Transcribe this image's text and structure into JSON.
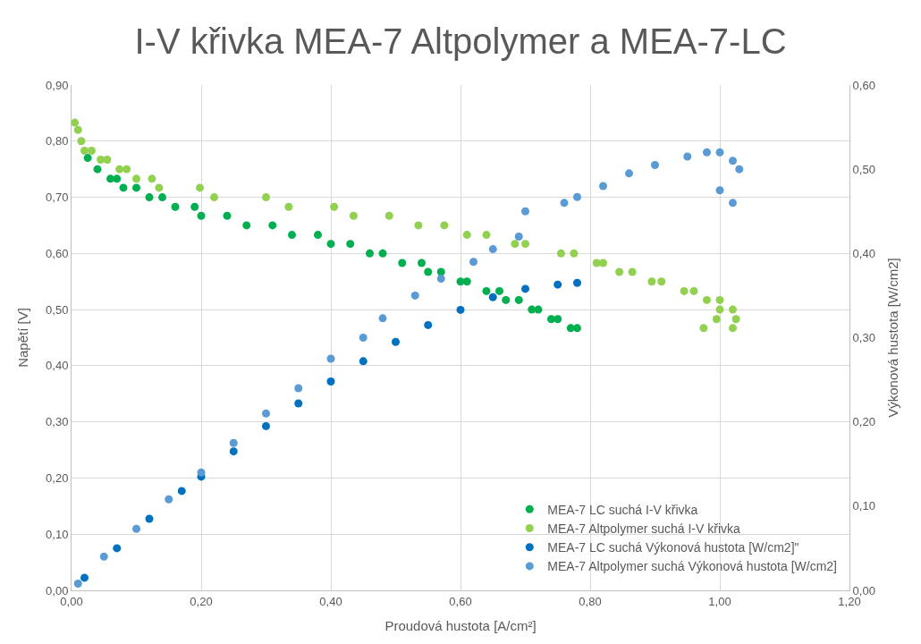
{
  "chart_data": {
    "type": "scatter",
    "title": "I-V křivka MEA-7 Altpolymer a MEA-7-LC",
    "xlabel": "Proudová hustota [A/cm²]",
    "ylabel": "Napětí [V]",
    "y2label": "Výkonová hustota [W/cm2]",
    "xlim": [
      0,
      1.2
    ],
    "xticks": [
      {
        "value": 0,
        "label": "0,00"
      },
      {
        "value": 0.2,
        "label": "0,20"
      },
      {
        "value": 0.4,
        "label": "0,40"
      },
      {
        "value": 0.6,
        "label": "0,60"
      },
      {
        "value": 0.8,
        "label": "0,80"
      },
      {
        "value": 1.0,
        "label": "1,00"
      },
      {
        "value": 1.2,
        "label": "1,20"
      }
    ],
    "ylim": [
      0,
      0.9
    ],
    "yticks": [
      {
        "value": 0,
        "label": "0,00"
      },
      {
        "value": 0.1,
        "label": "0,10"
      },
      {
        "value": 0.2,
        "label": "0,20"
      },
      {
        "value": 0.3,
        "label": "0,30"
      },
      {
        "value": 0.4,
        "label": "0,40"
      },
      {
        "value": 0.5,
        "label": "0,50"
      },
      {
        "value": 0.6,
        "label": "0,60"
      },
      {
        "value": 0.7,
        "label": "0,70"
      },
      {
        "value": 0.8,
        "label": "0,80"
      },
      {
        "value": 0.9,
        "label": "0,90"
      }
    ],
    "y2lim": [
      0,
      0.6
    ],
    "y2ticks": [
      {
        "value": 0,
        "label": "0,00"
      },
      {
        "value": 0.1,
        "label": "0,10"
      },
      {
        "value": 0.2,
        "label": "0,20"
      },
      {
        "value": 0.3,
        "label": "0,30"
      },
      {
        "value": 0.4,
        "label": "0,40"
      },
      {
        "value": 0.5,
        "label": "0,50"
      },
      {
        "value": 0.6,
        "label": "0,60"
      }
    ],
    "grid": true,
    "legend": "bottom right",
    "marker": "circle",
    "series": [
      {
        "name": "MEA-7 LC suchá I-V křivka",
        "color": "#00b050",
        "x": [
          0.025,
          0.04,
          0.06,
          0.07,
          0.08,
          0.1,
          0.12,
          0.14,
          0.16,
          0.19,
          0.2,
          0.24,
          0.27,
          0.31,
          0.34,
          0.38,
          0.4,
          0.43,
          0.46,
          0.48,
          0.51,
          0.54,
          0.55,
          0.57,
          0.6,
          0.61,
          0.64,
          0.66,
          0.67,
          0.69,
          0.71,
          0.72,
          0.74,
          0.75,
          0.77,
          0.78
        ],
        "values": [
          0.77,
          0.75,
          0.733,
          0.733,
          0.717,
          0.717,
          0.7,
          0.7,
          0.683,
          0.683,
          0.667,
          0.667,
          0.65,
          0.65,
          0.633,
          0.633,
          0.617,
          0.617,
          0.6,
          0.6,
          0.583,
          0.583,
          0.567,
          0.567,
          0.55,
          0.55,
          0.533,
          0.533,
          0.517,
          0.517,
          0.5,
          0.5,
          0.483,
          0.483,
          0.467,
          0.467
        ]
      },
      {
        "name": "MEA-7 Altpolymer suchá I-V křivka",
        "color": "#92d050",
        "x": [
          0.005,
          0.01,
          0.015,
          0.02,
          0.031,
          0.045,
          0.055,
          0.074,
          0.085,
          0.1,
          0.124,
          0.135,
          0.198,
          0.22,
          0.3,
          0.335,
          0.405,
          0.435,
          0.49,
          0.535,
          0.575,
          0.61,
          0.64,
          0.684,
          0.7,
          0.755,
          0.775,
          0.81,
          0.82,
          0.845,
          0.865,
          0.895,
          0.91,
          0.945,
          0.96,
          0.98,
          1.0,
          1.0,
          1.02,
          0.995,
          1.025,
          0.975,
          1.02
        ],
        "values": [
          0.833,
          0.82,
          0.8,
          0.783,
          0.783,
          0.767,
          0.767,
          0.75,
          0.75,
          0.733,
          0.733,
          0.717,
          0.717,
          0.7,
          0.7,
          0.683,
          0.683,
          0.667,
          0.667,
          0.65,
          0.65,
          0.633,
          0.633,
          0.617,
          0.617,
          0.6,
          0.6,
          0.583,
          0.583,
          0.567,
          0.567,
          0.55,
          0.55,
          0.533,
          0.533,
          0.517,
          0.517,
          0.5,
          0.5,
          0.483,
          0.483,
          0.467,
          0.467
        ]
      },
      {
        "name": "MEA-7 LC suchá Výkonová hustota [W/cm2]\"",
        "color": "#0070c0",
        "axis": "y2",
        "x": [
          0.02,
          0.07,
          0.12,
          0.17,
          0.2,
          0.25,
          0.3,
          0.35,
          0.4,
          0.45,
          0.5,
          0.55,
          0.6,
          0.65,
          0.7,
          0.75,
          0.78
        ],
        "values": [
          0.015,
          0.05,
          0.085,
          0.118,
          0.135,
          0.165,
          0.195,
          0.222,
          0.248,
          0.272,
          0.295,
          0.315,
          0.333,
          0.348,
          0.358,
          0.363,
          0.365
        ]
      },
      {
        "name": "MEA-7 Altpolymer suchá Výkonová hustota [W/cm2]",
        "color": "#5b9bd5",
        "axis": "y2",
        "x": [
          0.01,
          0.05,
          0.1,
          0.15,
          0.2,
          0.25,
          0.3,
          0.35,
          0.4,
          0.45,
          0.48,
          0.53,
          0.57,
          0.62,
          0.65,
          0.69,
          0.7,
          0.76,
          0.78,
          0.82,
          0.86,
          0.9,
          0.95,
          0.98,
          1.0,
          1.02,
          1.03,
          1.0,
          1.02
        ],
        "values": [
          0.008,
          0.04,
          0.073,
          0.108,
          0.14,
          0.175,
          0.21,
          0.24,
          0.275,
          0.3,
          0.323,
          0.35,
          0.37,
          0.39,
          0.405,
          0.42,
          0.45,
          0.46,
          0.467,
          0.48,
          0.495,
          0.505,
          0.515,
          0.52,
          0.52,
          0.51,
          0.5,
          0.475,
          0.46
        ]
      }
    ]
  }
}
